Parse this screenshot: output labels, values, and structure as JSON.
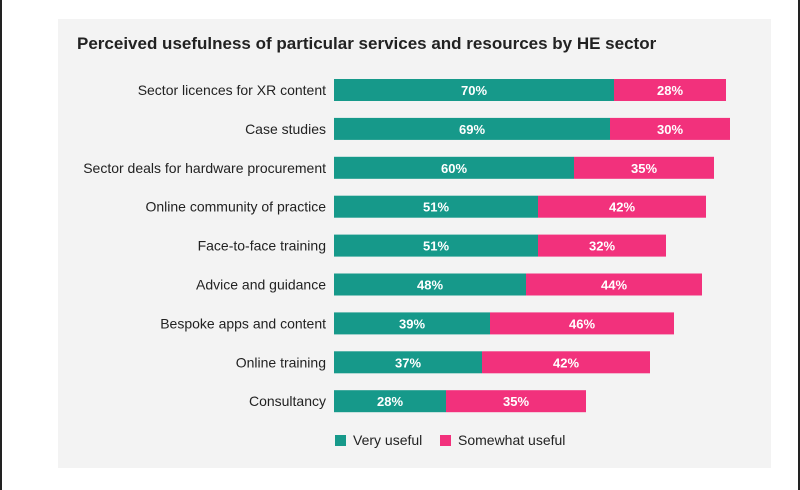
{
  "chart_data": {
    "type": "bar",
    "orientation": "horizontal",
    "stacked": true,
    "title": "Perceived usefulness of particular services and resources by HE sector",
    "categories": [
      "Sector licences for XR content",
      "Case studies",
      "Sector deals for hardware procurement",
      "Online community of practice",
      "Face-to-face training",
      "Advice and guidance",
      "Bespoke apps and content",
      "Online training",
      "Consultancy"
    ],
    "series": [
      {
        "name": "Very useful",
        "color": "#16998a",
        "values": [
          70,
          69,
          60,
          51,
          51,
          48,
          39,
          37,
          28
        ]
      },
      {
        "name": "Somewhat useful",
        "color": "#f2317c",
        "values": [
          28,
          30,
          35,
          42,
          32,
          44,
          46,
          42,
          35
        ]
      }
    ],
    "value_suffix": "%",
    "xlim": [
      0,
      100
    ],
    "grid": false,
    "legend_position": "bottom-center"
  }
}
